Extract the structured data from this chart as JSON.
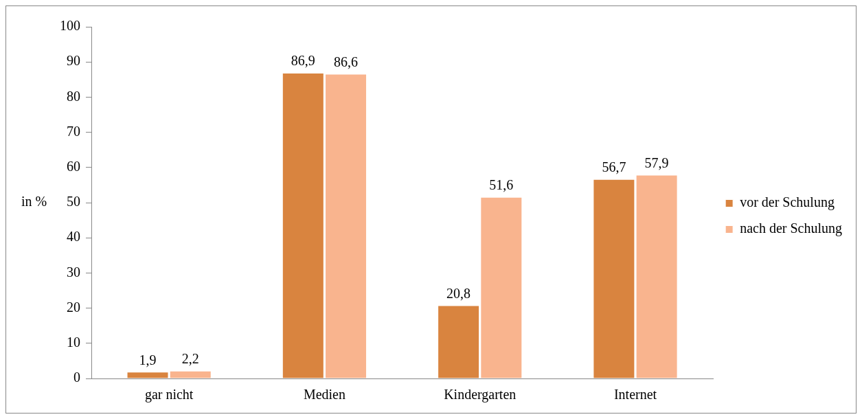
{
  "chart_data": {
    "type": "bar",
    "ylabel": "in %",
    "categories": [
      "gar nicht",
      "Medien",
      "Kindergarten",
      "Internet"
    ],
    "series": [
      {
        "name": "vor der Schulung",
        "color": "#d9843f",
        "values": [
          1.9,
          86.9,
          20.8,
          56.7
        ],
        "value_labels": [
          "1,9",
          "86,9",
          "20,8",
          "56,7"
        ]
      },
      {
        "name": "nach der Schulung",
        "color": "#f9b48e",
        "values": [
          2.2,
          86.6,
          51.6,
          57.9
        ],
        "value_labels": [
          "2,2",
          "86,6",
          "51,6",
          "57,9"
        ]
      }
    ],
    "ylim": [
      0,
      100
    ],
    "yticks": [
      0,
      10,
      20,
      30,
      40,
      50,
      60,
      70,
      80,
      90,
      100
    ],
    "grid": false,
    "legend": "right"
  }
}
